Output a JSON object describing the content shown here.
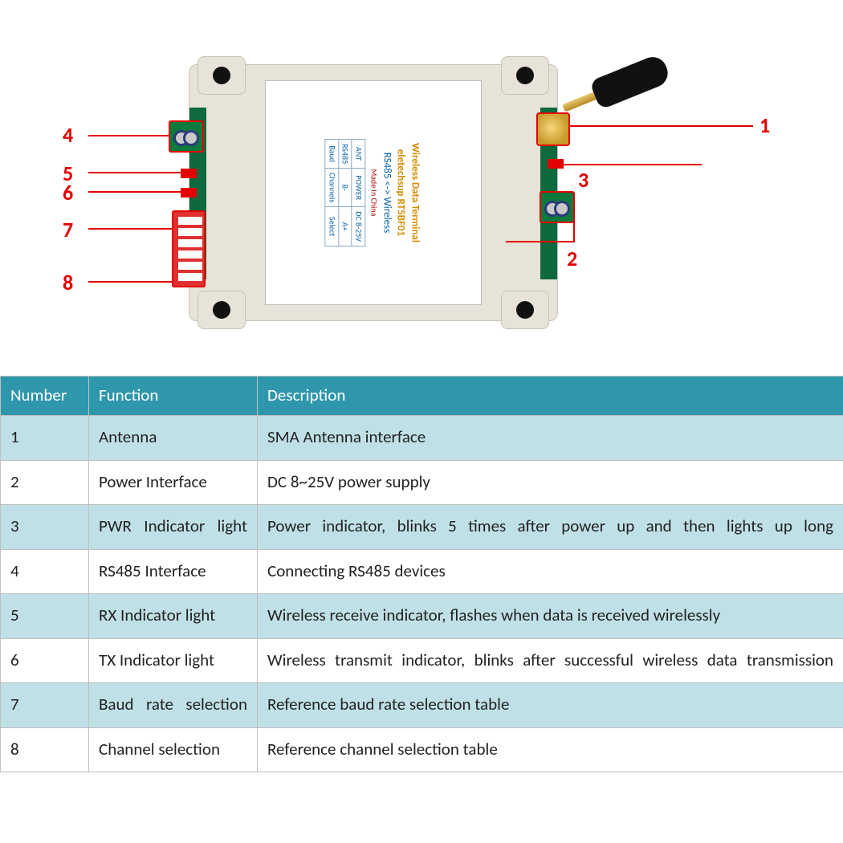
{
  "colors": {
    "header_bg": "#2f97ac",
    "header_fg": "#ffffff",
    "row_odd_bg": "#bfe0e6",
    "row_even_bg": "#ffffff",
    "border": "#bfbfbf",
    "callout": "#e30000",
    "enclosure": "#e8e3d9",
    "pcb": "#0e6a3e",
    "brass": "#c79a2a"
  },
  "device_label": {
    "line1": "Wireless Data Terminal",
    "line2": "eletechsup   RT5BF01",
    "line3": "RS485 <-> Wireless",
    "line4": "Made In China",
    "cells": {
      "ant": "ANT",
      "power": "POWER",
      "power_range": "DC 8-25V",
      "rs485": "RS485",
      "b_minus": "B-",
      "a_plus": "A+",
      "baud": "Baud",
      "ch_sel_1": "Channels",
      "ch_sel_2": "Select"
    }
  },
  "callouts": {
    "n1": "1",
    "n2": "2",
    "n3": "3",
    "n4": "4",
    "n5": "5",
    "n6": "6",
    "n7": "7",
    "n8": "8"
  },
  "table": {
    "headers": {
      "c1": "Number",
      "c2": "Function",
      "c3": "Description"
    },
    "rows": [
      {
        "num": "1",
        "func": "Antenna",
        "desc": "SMA Antenna interface",
        "func_justify": false,
        "desc_justify": false
      },
      {
        "num": "2",
        "func": "Power Interface",
        "desc": "DC 8~25V power supply",
        "func_justify": false,
        "desc_justify": false
      },
      {
        "num": "3",
        "func": "PWR Indicator light",
        "desc": "Power indicator, blinks 5 times after power up and then lights up long",
        "func_justify": true,
        "desc_justify": true
      },
      {
        "num": "4",
        "func": "RS485 Interface",
        "desc": "Connecting RS485 devices",
        "func_justify": false,
        "desc_justify": false
      },
      {
        "num": "5",
        "func": "RX Indicator light",
        "desc": "Wireless receive indicator, flashes when data is received wirelessly",
        "func_justify": false,
        "desc_justify": false
      },
      {
        "num": "6",
        "func": "TX Indicator light",
        "desc": "Wireless transmit indicator, blinks after successful wireless data transmission",
        "func_justify": false,
        "desc_justify": true
      },
      {
        "num": "7",
        "func": "Baud rate selection",
        "desc": "Reference baud rate selection table",
        "func_justify": true,
        "desc_justify": false
      },
      {
        "num": "8",
        "func": "Channel selection",
        "desc": "Reference channel selection table",
        "func_justify": false,
        "desc_justify": false
      }
    ]
  }
}
